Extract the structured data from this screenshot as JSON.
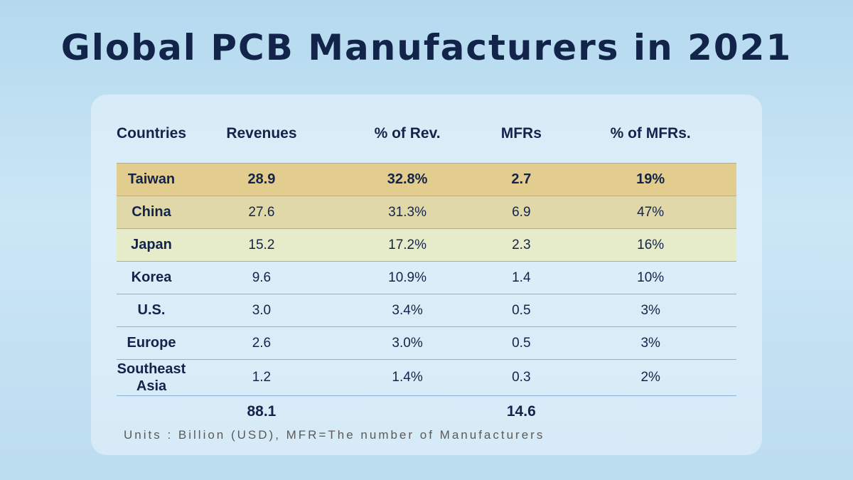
{
  "title": "Global PCB Manufacturers in 2021",
  "headers": [
    "Countries",
    "Revenues",
    "% of Rev.",
    "MFRs",
    "% of MFRs."
  ],
  "rows": [
    [
      "Taiwan",
      "28.9",
      "32.8%",
      "2.7",
      "19%"
    ],
    [
      "China",
      "27.6",
      "31.3%",
      "6.9",
      "47%"
    ],
    [
      "Japan",
      "15.2",
      "17.2%",
      "2.3",
      "16%"
    ],
    [
      "Korea",
      "9.6",
      "10.9%",
      "1.4",
      "10%"
    ],
    [
      "U.S.",
      "3.0",
      "3.4%",
      "0.5",
      "3%"
    ],
    [
      "Europe",
      "2.6",
      "3.0%",
      "0.5",
      "3%"
    ],
    [
      "Southeast Asia",
      "1.2",
      "1.4%",
      "0.3",
      "2%"
    ]
  ],
  "totals": {
    "revenues": "88.1",
    "mfrs": "14.6"
  },
  "note": "Units : Billion (USD), MFR=The number of Manufacturers",
  "colors": {
    "taiwan_row": "#e2cd8e",
    "china_row": "#e0d8a8",
    "japan_row": "#e6ecc9",
    "text": "#13244a"
  }
}
